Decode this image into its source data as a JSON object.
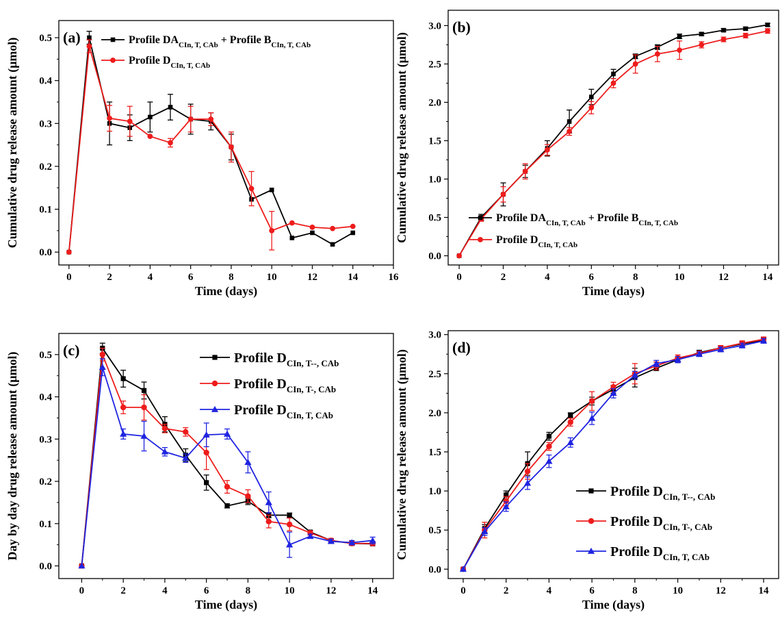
{
  "colors": {
    "black": "#000000",
    "red": "#ee1c1c",
    "blue": "#1f24e0"
  },
  "chart_data": [
    {
      "panel": "(a)",
      "type": "line",
      "xlabel": "Time (days)",
      "ylabel": "Cumulative drug release amount (μmol)",
      "xlim": [
        -0.5,
        16
      ],
      "ylim": [
        -0.03,
        0.54
      ],
      "xticks": [
        0,
        2,
        4,
        6,
        8,
        10,
        12,
        14,
        16
      ],
      "yticks": [
        0.0,
        0.1,
        0.2,
        0.3,
        0.4,
        0.5
      ],
      "ytick_decimals": 1,
      "legend_position": "top-right",
      "legend_size": "small",
      "series": [
        {
          "name": "Profile DA",
          "name_sub": "CIn, T, CAb",
          "name_join": " + Profile B",
          "name_sub2": "CIn, T, CAb",
          "color": "#000000",
          "marker": "square",
          "x": [
            0,
            1,
            2,
            3,
            4,
            5,
            6,
            7,
            8,
            9,
            10,
            11,
            12,
            13,
            14
          ],
          "y": [
            0.0,
            0.5,
            0.3,
            0.29,
            0.315,
            0.338,
            0.31,
            0.305,
            0.245,
            0.123,
            0.145,
            0.033,
            0.045,
            0.018,
            0.045
          ],
          "err": [
            0,
            0.015,
            0.05,
            0.03,
            0.035,
            0.03,
            0.035,
            0.02,
            0.03,
            0,
            0,
            0,
            0,
            0,
            0
          ]
        },
        {
          "name": "Profile D",
          "name_sub": "CIn, T, CAb",
          "color": "#ee1c1c",
          "marker": "circle",
          "x": [
            0,
            1,
            2,
            3,
            4,
            5,
            6,
            7,
            8,
            9,
            10,
            11,
            12,
            13,
            14
          ],
          "y": [
            0.0,
            0.48,
            0.312,
            0.305,
            0.27,
            0.255,
            0.31,
            0.31,
            0.245,
            0.148,
            0.05,
            0.068,
            0.058,
            0.055,
            0.06
          ],
          "err": [
            0,
            0.015,
            0.03,
            0.035,
            0,
            0.01,
            0.03,
            0.015,
            0.035,
            0.04,
            0.045,
            0,
            0,
            0,
            0
          ]
        }
      ]
    },
    {
      "panel": "(b)",
      "type": "line",
      "xlabel": "Time (days)",
      "ylabel": "Cumulative drug release amount (μmol)",
      "xlim": [
        -0.5,
        14.5
      ],
      "ylim": [
        -0.12,
        3.2
      ],
      "xticks": [
        0,
        2,
        4,
        6,
        8,
        10,
        12,
        14
      ],
      "yticks": [
        0.0,
        0.5,
        1.0,
        1.5,
        2.0,
        2.5,
        3.0
      ],
      "ytick_decimals": 1,
      "legend_position": "bottom-right",
      "legend_size": "small",
      "series": [
        {
          "name": "Profile DA",
          "name_sub": "CIn, T, CAb",
          "name_join": " + Profile B",
          "name_sub2": "CIn, T, CAb",
          "color": "#000000",
          "marker": "square",
          "x": [
            0,
            1,
            2,
            3,
            4,
            5,
            6,
            7,
            8,
            9,
            10,
            11,
            12,
            13,
            14
          ],
          "y": [
            0.0,
            0.5,
            0.8,
            1.1,
            1.4,
            1.75,
            2.07,
            2.37,
            2.6,
            2.72,
            2.86,
            2.89,
            2.94,
            2.96,
            3.01
          ],
          "err": [
            0,
            0.04,
            0.15,
            0.08,
            0.1,
            0.15,
            0.1,
            0.06,
            0.03,
            0.03,
            0.03,
            0.02,
            0.02,
            0.02,
            0.02
          ]
        },
        {
          "name": "Profile D",
          "name_sub": "CIn, T, CAb",
          "color": "#ee1c1c",
          "marker": "circle",
          "x": [
            0,
            1,
            2,
            3,
            4,
            5,
            6,
            7,
            8,
            9,
            10,
            11,
            12,
            13,
            14
          ],
          "y": [
            0.0,
            0.48,
            0.8,
            1.1,
            1.38,
            1.62,
            1.93,
            2.25,
            2.5,
            2.63,
            2.68,
            2.75,
            2.82,
            2.87,
            2.93
          ],
          "err": [
            0,
            0.03,
            0.1,
            0.1,
            0.07,
            0.05,
            0.08,
            0.06,
            0.12,
            0.1,
            0.12,
            0.04,
            0.03,
            0.03,
            0.03
          ]
        }
      ]
    },
    {
      "panel": "(c)",
      "type": "line",
      "xlabel": "Time (days)",
      "ylabel": "Day by day drug release amount (μmol)",
      "xlim": [
        -1.1,
        15
      ],
      "ylim": [
        -0.03,
        0.55
      ],
      "xticks": [
        0,
        2,
        4,
        6,
        8,
        10,
        12,
        14
      ],
      "yticks": [
        0.0,
        0.1,
        0.2,
        0.3,
        0.4,
        0.5
      ],
      "ytick_decimals": 1,
      "legend_position": "top-right",
      "legend_size": "large",
      "series": [
        {
          "name": "Profile D",
          "name_sub": "CIn, T--, CAb",
          "color": "#000000",
          "marker": "square",
          "x": [
            0,
            1,
            2,
            3,
            4,
            5,
            6,
            7,
            8,
            9,
            10,
            11,
            12,
            13,
            14
          ],
          "y": [
            0.0,
            0.515,
            0.443,
            0.415,
            0.335,
            0.262,
            0.197,
            0.142,
            0.153,
            0.12,
            0.12,
            0.08,
            0.06,
            0.053,
            0.052
          ],
          "err": [
            0,
            0.012,
            0.02,
            0.02,
            0.018,
            0.015,
            0.018,
            0.005,
            0.008,
            0.006,
            0.005,
            0.004,
            0.004,
            0.004,
            0.004
          ]
        },
        {
          "name": "Profile D",
          "name_sub": "CIn, T-, CAb",
          "color": "#ee1c1c",
          "marker": "circle",
          "x": [
            0,
            1,
            2,
            3,
            4,
            5,
            6,
            7,
            8,
            9,
            10,
            11,
            12,
            13,
            14
          ],
          "y": [
            0.0,
            0.5,
            0.375,
            0.375,
            0.325,
            0.317,
            0.268,
            0.187,
            0.165,
            0.105,
            0.098,
            0.078,
            0.06,
            0.053,
            0.053
          ],
          "err": [
            0,
            0.015,
            0.015,
            0.03,
            0.01,
            0.01,
            0.04,
            0.015,
            0.015,
            0.015,
            0.015,
            0.005,
            0.005,
            0.005,
            0.005
          ]
        },
        {
          "name": "Profile D",
          "name_sub": "CIn, T, CAb",
          "color": "#1f24e0",
          "marker": "triangle",
          "x": [
            0,
            1,
            2,
            3,
            4,
            5,
            6,
            7,
            8,
            9,
            10,
            11,
            12,
            13,
            14
          ],
          "y": [
            0.0,
            0.47,
            0.312,
            0.307,
            0.27,
            0.255,
            0.31,
            0.312,
            0.245,
            0.15,
            0.05,
            0.07,
            0.058,
            0.055,
            0.06
          ],
          "err": [
            0,
            0.02,
            0.012,
            0.035,
            0.01,
            0.01,
            0.028,
            0.012,
            0.025,
            0.025,
            0.03,
            0.005,
            0.005,
            0.005,
            0.008
          ]
        }
      ]
    },
    {
      "panel": "(d)",
      "type": "line",
      "xlabel": "Time (days)",
      "ylabel": "Cumulative drug release amount (μmol)",
      "xlim": [
        -0.7,
        14.7
      ],
      "ylim": [
        -0.12,
        3.05
      ],
      "xticks": [
        0,
        2,
        4,
        6,
        8,
        10,
        12,
        14
      ],
      "yticks": [
        0.0,
        0.5,
        1.0,
        1.5,
        2.0,
        2.5,
        3.0
      ],
      "ytick_decimals": 1,
      "legend_position": "bottom-right",
      "legend_size": "large",
      "series": [
        {
          "name": "Profile D",
          "name_sub": "CIn, T--, CAb",
          "color": "#000000",
          "marker": "square",
          "x": [
            0,
            1,
            2,
            3,
            4,
            5,
            6,
            7,
            8,
            9,
            10,
            11,
            12,
            13,
            14
          ],
          "y": [
            0.0,
            0.52,
            0.95,
            1.35,
            1.7,
            1.97,
            2.15,
            2.3,
            2.45,
            2.57,
            2.68,
            2.77,
            2.83,
            2.88,
            2.93
          ],
          "err": [
            0,
            0.05,
            0.05,
            0.15,
            0.05,
            0.03,
            0.05,
            0.05,
            0.12,
            0.03,
            0.03,
            0.03,
            0.03,
            0.03,
            0.03
          ]
        },
        {
          "name": "Profile D",
          "name_sub": "CIn, T-, CAb",
          "color": "#ee1c1c",
          "marker": "circle",
          "x": [
            0,
            1,
            2,
            3,
            4,
            5,
            6,
            7,
            8,
            9,
            10,
            11,
            12,
            13,
            14
          ],
          "y": [
            0.0,
            0.5,
            0.87,
            1.25,
            1.57,
            1.88,
            2.15,
            2.33,
            2.5,
            2.6,
            2.7,
            2.76,
            2.83,
            2.89,
            2.94
          ],
          "err": [
            0,
            0.1,
            0.06,
            0.1,
            0.05,
            0.05,
            0.12,
            0.06,
            0.13,
            0.05,
            0.04,
            0.03,
            0.03,
            0.03,
            0.03
          ]
        },
        {
          "name": "Profile D",
          "name_sub": "CIn, T, CAb",
          "color": "#1f24e0",
          "marker": "triangle",
          "x": [
            0,
            1,
            2,
            3,
            4,
            5,
            6,
            7,
            8,
            9,
            10,
            11,
            12,
            13,
            14
          ],
          "y": [
            0.0,
            0.48,
            0.8,
            1.1,
            1.38,
            1.62,
            1.93,
            2.25,
            2.48,
            2.63,
            2.68,
            2.75,
            2.81,
            2.86,
            2.92
          ],
          "err": [
            0,
            0.05,
            0.06,
            0.08,
            0.08,
            0.06,
            0.08,
            0.06,
            0.05,
            0.04,
            0.04,
            0.03,
            0.03,
            0.03,
            0.03
          ]
        }
      ]
    }
  ]
}
